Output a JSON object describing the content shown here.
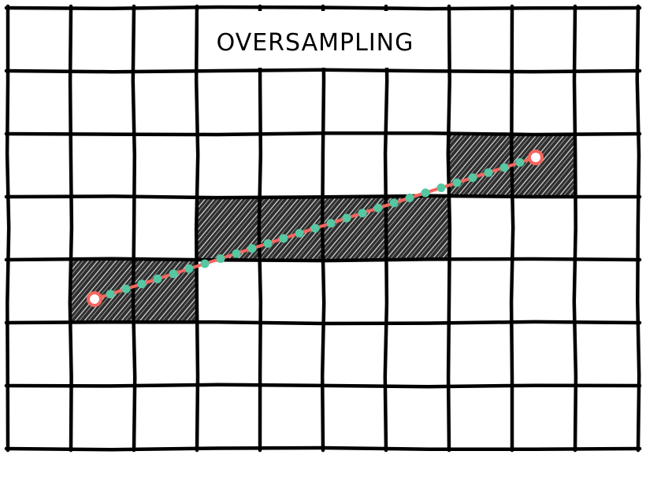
{
  "title": "OVERSAMPLING",
  "grid": {
    "columns": 10,
    "rows": 7
  },
  "filled_cells": [
    {
      "col": 1,
      "row": 4
    },
    {
      "col": 2,
      "row": 4
    },
    {
      "col": 3,
      "row": 3
    },
    {
      "col": 4,
      "row": 3
    },
    {
      "col": 5,
      "row": 3
    },
    {
      "col": 6,
      "row": 3
    },
    {
      "col": 7,
      "row": 2
    },
    {
      "col": 8,
      "row": 2
    }
  ],
  "line": {
    "start": {
      "col": 1.5,
      "row": 4.5
    },
    "end": {
      "col": 8.5,
      "row": 2.5
    },
    "sample_count": 29
  },
  "colors": {
    "grid": "#000000",
    "fill": "#2e2e2e",
    "hatch": "#ffffff",
    "line": "#f4665f",
    "samples": "#55c7a2",
    "background": "#ffffff"
  }
}
